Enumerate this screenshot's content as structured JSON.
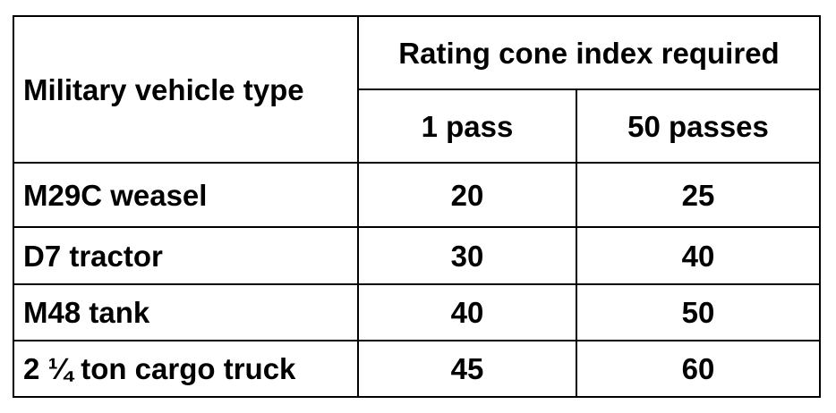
{
  "table": {
    "header": {
      "vehicle_type": "Military vehicle type",
      "group": "Rating cone index required",
      "pass_1": "1 pass",
      "pass_50": "50 passes"
    },
    "rows": [
      {
        "vehicle": "M29C weasel",
        "pass_1": "20",
        "pass_50": "25"
      },
      {
        "vehicle": "D7 tractor",
        "pass_1": "30",
        "pass_50": "40"
      },
      {
        "vehicle": "M48 tank",
        "pass_1": "40",
        "pass_50": "50"
      },
      {
        "vehicle": "2 ¼ ton cargo truck",
        "pass_1": "45",
        "pass_50": "60"
      }
    ]
  }
}
